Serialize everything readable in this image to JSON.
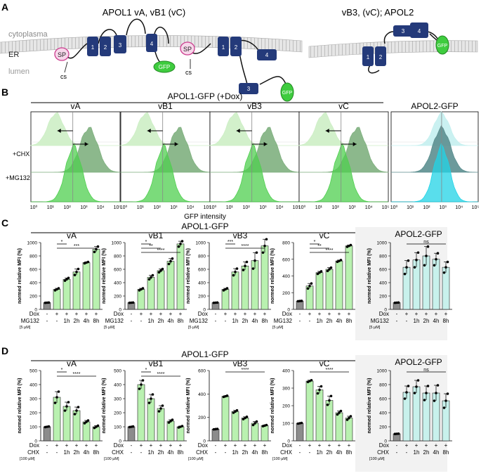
{
  "panels": {
    "A": "A",
    "B": "B",
    "C": "C",
    "D": "D"
  },
  "panel_a": {
    "title_left": "APOL1 vA, vB1 (vC)",
    "title_right": "vB3, (vC); APOL2",
    "label_cytoplasma": "cytoplasma",
    "label_er": "ER",
    "label_lumen": "lumen",
    "label_sp": "SP",
    "label_cs": "cs",
    "label_gfp": "GFP",
    "domains": [
      "1",
      "2",
      "3",
      "4"
    ]
  },
  "panel_b": {
    "title": "APOL1-GFP (+Dox)",
    "subpanels": [
      "vA",
      "vB1",
      "vB3",
      "vC",
      "APOL2-GFP"
    ],
    "row_labels": [
      "+CHX",
      "+MG132"
    ],
    "xticks": [
      "10⁰",
      "10¹",
      "10²",
      "10³",
      "10⁴",
      "10⁵"
    ],
    "xlabel": "GFP intensity",
    "colors": {
      "apol1_light": "#cdeec5",
      "apol1_mid": "#4fcf4f",
      "apol1_dark": "#7fb07f",
      "apol2_light": "#c4f0ef",
      "apol2_mid": "#22d3e6",
      "apol2_dark": "#5c8f90"
    }
  },
  "panel_c": {
    "title": "APOL1-GFP",
    "ylabel": "normed relative MFI (%)",
    "treat_label": "MG132",
    "treat_conc": "[5 µM]",
    "x_dox": [
      "-",
      "+",
      "+",
      "+",
      "+",
      "+"
    ],
    "x_treat": [
      "-",
      "-",
      "1h",
      "2h",
      "4h",
      "8h"
    ],
    "sig_ns": "ns"
  },
  "panel_d": {
    "title": "APOL1-GFP",
    "ylabel": "normed relative MFI (%)",
    "treat_label": "CHX",
    "treat_conc": "[100 µM]",
    "x_dox": [
      "-",
      "+",
      "+",
      "+",
      "+",
      "+"
    ],
    "x_treat": [
      "-",
      "-",
      "1h",
      "2h",
      "4h",
      "8h"
    ],
    "sig_ns": "ns"
  },
  "row_label_dox": "Dox",
  "chart_data": [
    {
      "panel": "C",
      "type": "bar",
      "title": "vA",
      "categories": [
        "-",
        "+",
        "1h",
        "2h",
        "4h",
        "8h"
      ],
      "values": [
        100,
        300,
        450,
        560,
        700,
        900
      ],
      "errors": [
        0,
        15,
        20,
        45,
        10,
        40
      ],
      "ylim": [
        0,
        1000
      ],
      "yticks": [
        0,
        200,
        400,
        600,
        800,
        1000
      ],
      "significance": [
        "*",
        "***"
      ],
      "color": "#b9f1b0"
    },
    {
      "panel": "C",
      "type": "bar",
      "title": "vB1",
      "categories": [
        "-",
        "+",
        "1h",
        "2h",
        "4h",
        "8h"
      ],
      "values": [
        100,
        300,
        480,
        580,
        720,
        980
      ],
      "errors": [
        0,
        15,
        30,
        25,
        40,
        40
      ],
      "ylim": [
        0,
        1000
      ],
      "yticks": [
        0,
        200,
        400,
        600,
        800,
        1000
      ],
      "significance": [
        "*",
        "**",
        "****"
      ],
      "color": "#b9f1b0"
    },
    {
      "panel": "C",
      "type": "bar",
      "title": "vB3",
      "categories": [
        "-",
        "+",
        "1h",
        "2h",
        "4h",
        "8h"
      ],
      "values": [
        100,
        300,
        560,
        650,
        730,
        950
      ],
      "errors": [
        0,
        15,
        50,
        60,
        120,
        100
      ],
      "ylim": [
        0,
        1000
      ],
      "yticks": [
        0,
        200,
        400,
        600,
        800,
        1000
      ],
      "significance": [
        "***",
        "****"
      ],
      "color": "#b9f1b0"
    },
    {
      "panel": "C",
      "type": "bar",
      "title": "vC",
      "categories": [
        "-",
        "+",
        "1h",
        "2h",
        "4h",
        "8h"
      ],
      "values": [
        100,
        280,
        440,
        480,
        580,
        760
      ],
      "errors": [
        0,
        30,
        15,
        20,
        10,
        10
      ],
      "ylim": [
        0,
        800
      ],
      "yticks": [
        0,
        200,
        400,
        600,
        800
      ],
      "significance": [
        "*",
        "**",
        "****"
      ],
      "color": "#b9f1b0"
    },
    {
      "panel": "C",
      "type": "bar",
      "title": "APOL2-GFP",
      "categories": [
        "-",
        "+",
        "1h",
        "2h",
        "4h",
        "8h"
      ],
      "values": [
        100,
        630,
        740,
        800,
        750,
        630
      ],
      "errors": [
        0,
        100,
        110,
        140,
        90,
        80
      ],
      "ylim": [
        0,
        1000
      ],
      "yticks": [
        0,
        200,
        400,
        600,
        800,
        1000
      ],
      "significance": [
        "ns"
      ],
      "color": "#c8f1ec"
    },
    {
      "panel": "D",
      "type": "bar",
      "title": "vA",
      "categories": [
        "-",
        "+",
        "1h",
        "2h",
        "4h",
        "8h"
      ],
      "values": [
        100,
        310,
        245,
        215,
        135,
        100
      ],
      "errors": [
        0,
        40,
        30,
        25,
        10,
        8
      ],
      "ylim": [
        0,
        500
      ],
      "yticks": [
        0,
        100,
        200,
        300,
        400,
        500
      ],
      "significance": [
        "*",
        "****"
      ],
      "color": "#b9f1b0"
    },
    {
      "panel": "D",
      "type": "bar",
      "title": "vB1",
      "categories": [
        "-",
        "+",
        "1h",
        "2h",
        "4h",
        "8h"
      ],
      "values": [
        100,
        400,
        300,
        230,
        140,
        100
      ],
      "errors": [
        0,
        30,
        30,
        20,
        10,
        5
      ],
      "ylim": [
        0,
        500
      ],
      "yticks": [
        0,
        100,
        200,
        300,
        400,
        500
      ],
      "significance": [
        "*",
        "****"
      ],
      "color": "#b9f1b0"
    },
    {
      "panel": "D",
      "type": "bar",
      "title": "vB3",
      "categories": [
        "-",
        "+",
        "1h",
        "2h",
        "4h",
        "8h"
      ],
      "values": [
        100,
        380,
        250,
        195,
        150,
        130
      ],
      "errors": [
        0,
        5,
        10,
        10,
        15,
        5
      ],
      "ylim": [
        0,
        600
      ],
      "yticks": [
        0,
        200,
        400,
        600
      ],
      "significance": [
        "****"
      ],
      "color": "#b9f1b0"
    },
    {
      "panel": "D",
      "type": "bar",
      "title": "vC",
      "categories": [
        "-",
        "+",
        "1h",
        "2h",
        "4h",
        "8h"
      ],
      "values": [
        100,
        340,
        290,
        230,
        160,
        130
      ],
      "errors": [
        0,
        5,
        20,
        25,
        10,
        10
      ],
      "ylim": [
        0,
        400
      ],
      "yticks": [
        0,
        100,
        200,
        300,
        400
      ],
      "significance": [
        "****"
      ],
      "color": "#b9f1b0"
    },
    {
      "panel": "D",
      "type": "bar",
      "title": "APOL2-GFP",
      "categories": [
        "-",
        "+",
        "1h",
        "2h",
        "4h",
        "8h"
      ],
      "values": [
        100,
        690,
        770,
        680,
        680,
        570
      ],
      "errors": [
        0,
        90,
        90,
        100,
        110,
        100
      ],
      "ylim": [
        0,
        1000
      ],
      "yticks": [
        0,
        200,
        400,
        600,
        800,
        1000
      ],
      "significance": [
        "ns"
      ],
      "color": "#c8f1ec"
    }
  ]
}
